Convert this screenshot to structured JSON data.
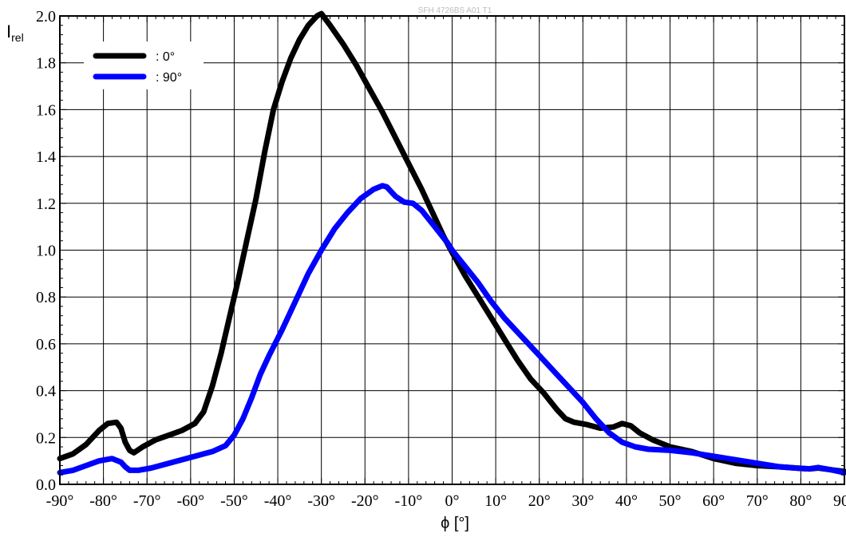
{
  "chart_data": {
    "type": "line",
    "title": "SFH 4726BS A01 T1",
    "xlabel": "ϕ [°]",
    "ylabel_main": "I",
    "ylabel_sub": "rel",
    "xlim": [
      -90,
      90
    ],
    "ylim": [
      0,
      2.0
    ],
    "grid": true,
    "legend_position": "top-left",
    "x_ticks": [
      -90,
      -80,
      -70,
      -60,
      -50,
      -40,
      -30,
      -20,
      -10,
      0,
      10,
      20,
      30,
      40,
      50,
      60,
      70,
      80,
      90
    ],
    "x_tick_labels": [
      "-90°",
      "-80°",
      "-70°",
      "-60°",
      "-50°",
      "-40°",
      "-30°",
      "-20°",
      "-10°",
      "0°",
      "10°",
      "20°",
      "30°",
      "40°",
      "50°",
      "60°",
      "70°",
      "80°",
      "90°"
    ],
    "y_ticks": [
      0,
      0.2,
      0.4,
      0.6,
      0.8,
      1.0,
      1.2,
      1.4,
      1.6,
      1.8,
      2.0
    ],
    "y_tick_labels": [
      "0.0",
      "0.2",
      "0.4",
      "0.6",
      "0.8",
      "1.0",
      "1.2",
      "1.4",
      "1.6",
      "1.8",
      "2.0"
    ],
    "series": [
      {
        "name": ": 0°",
        "color": "#000000",
        "points": [
          [
            -90,
            0.11
          ],
          [
            -87,
            0.13
          ],
          [
            -84,
            0.17
          ],
          [
            -81,
            0.23
          ],
          [
            -79,
            0.26
          ],
          [
            -77,
            0.265
          ],
          [
            -76,
            0.24
          ],
          [
            -75,
            0.18
          ],
          [
            -74,
            0.145
          ],
          [
            -73,
            0.135
          ],
          [
            -71,
            0.16
          ],
          [
            -68,
            0.19
          ],
          [
            -65,
            0.21
          ],
          [
            -62,
            0.23
          ],
          [
            -59,
            0.26
          ],
          [
            -57,
            0.31
          ],
          [
            -55,
            0.42
          ],
          [
            -53,
            0.56
          ],
          [
            -51,
            0.72
          ],
          [
            -49,
            0.88
          ],
          [
            -47,
            1.05
          ],
          [
            -45,
            1.22
          ],
          [
            -43,
            1.42
          ],
          [
            -41,
            1.6
          ],
          [
            -39,
            1.72
          ],
          [
            -37,
            1.82
          ],
          [
            -35,
            1.9
          ],
          [
            -33,
            1.96
          ],
          [
            -31,
            2.0
          ],
          [
            -30,
            2.01
          ],
          [
            -28,
            1.96
          ],
          [
            -25,
            1.88
          ],
          [
            -22,
            1.79
          ],
          [
            -19,
            1.69
          ],
          [
            -16,
            1.59
          ],
          [
            -13,
            1.48
          ],
          [
            -10,
            1.37
          ],
          [
            -7,
            1.26
          ],
          [
            -4,
            1.14
          ],
          [
            -2,
            1.06
          ],
          [
            0,
            0.99
          ],
          [
            3,
            0.89
          ],
          [
            6,
            0.8
          ],
          [
            9,
            0.71
          ],
          [
            12,
            0.62
          ],
          [
            15,
            0.53
          ],
          [
            18,
            0.45
          ],
          [
            21,
            0.39
          ],
          [
            24,
            0.32
          ],
          [
            26,
            0.28
          ],
          [
            28,
            0.265
          ],
          [
            31,
            0.255
          ],
          [
            34,
            0.24
          ],
          [
            37,
            0.245
          ],
          [
            39,
            0.26
          ],
          [
            41,
            0.25
          ],
          [
            43,
            0.22
          ],
          [
            46,
            0.19
          ],
          [
            50,
            0.16
          ],
          [
            55,
            0.14
          ],
          [
            60,
            0.11
          ],
          [
            65,
            0.09
          ],
          [
            70,
            0.08
          ],
          [
            75,
            0.075
          ],
          [
            80,
            0.068
          ],
          [
            82,
            0.066
          ],
          [
            84,
            0.07
          ],
          [
            87,
            0.062
          ],
          [
            90,
            0.055
          ]
        ]
      },
      {
        "name": ": 90°",
        "color": "#0000ff",
        "points": [
          [
            -90,
            0.05
          ],
          [
            -87,
            0.06
          ],
          [
            -84,
            0.08
          ],
          [
            -81,
            0.1
          ],
          [
            -78,
            0.11
          ],
          [
            -76,
            0.095
          ],
          [
            -75,
            0.075
          ],
          [
            -74,
            0.06
          ],
          [
            -72,
            0.06
          ],
          [
            -69,
            0.07
          ],
          [
            -65,
            0.09
          ],
          [
            -60,
            0.115
          ],
          [
            -55,
            0.14
          ],
          [
            -52,
            0.165
          ],
          [
            -50,
            0.21
          ],
          [
            -48,
            0.28
          ],
          [
            -46,
            0.37
          ],
          [
            -44,
            0.47
          ],
          [
            -42,
            0.55
          ],
          [
            -39,
            0.66
          ],
          [
            -36,
            0.78
          ],
          [
            -33,
            0.9
          ],
          [
            -30,
            1.0
          ],
          [
            -27,
            1.09
          ],
          [
            -24,
            1.16
          ],
          [
            -21,
            1.22
          ],
          [
            -18,
            1.26
          ],
          [
            -16,
            1.275
          ],
          [
            -15,
            1.27
          ],
          [
            -13,
            1.23
          ],
          [
            -11,
            1.205
          ],
          [
            -9,
            1.2
          ],
          [
            -7,
            1.17
          ],
          [
            -4,
            1.1
          ],
          [
            -1,
            1.03
          ],
          [
            0,
            1.0
          ],
          [
            3,
            0.93
          ],
          [
            6,
            0.86
          ],
          [
            9,
            0.78
          ],
          [
            12,
            0.71
          ],
          [
            15,
            0.65
          ],
          [
            18,
            0.59
          ],
          [
            21,
            0.53
          ],
          [
            24,
            0.47
          ],
          [
            27,
            0.41
          ],
          [
            30,
            0.35
          ],
          [
            33,
            0.28
          ],
          [
            36,
            0.22
          ],
          [
            39,
            0.18
          ],
          [
            42,
            0.16
          ],
          [
            45,
            0.15
          ],
          [
            50,
            0.145
          ],
          [
            55,
            0.135
          ],
          [
            60,
            0.12
          ],
          [
            65,
            0.105
          ],
          [
            70,
            0.09
          ],
          [
            75,
            0.075
          ],
          [
            80,
            0.068
          ],
          [
            82,
            0.066
          ],
          [
            84,
            0.072
          ],
          [
            87,
            0.062
          ],
          [
            90,
            0.05
          ]
        ]
      }
    ]
  }
}
